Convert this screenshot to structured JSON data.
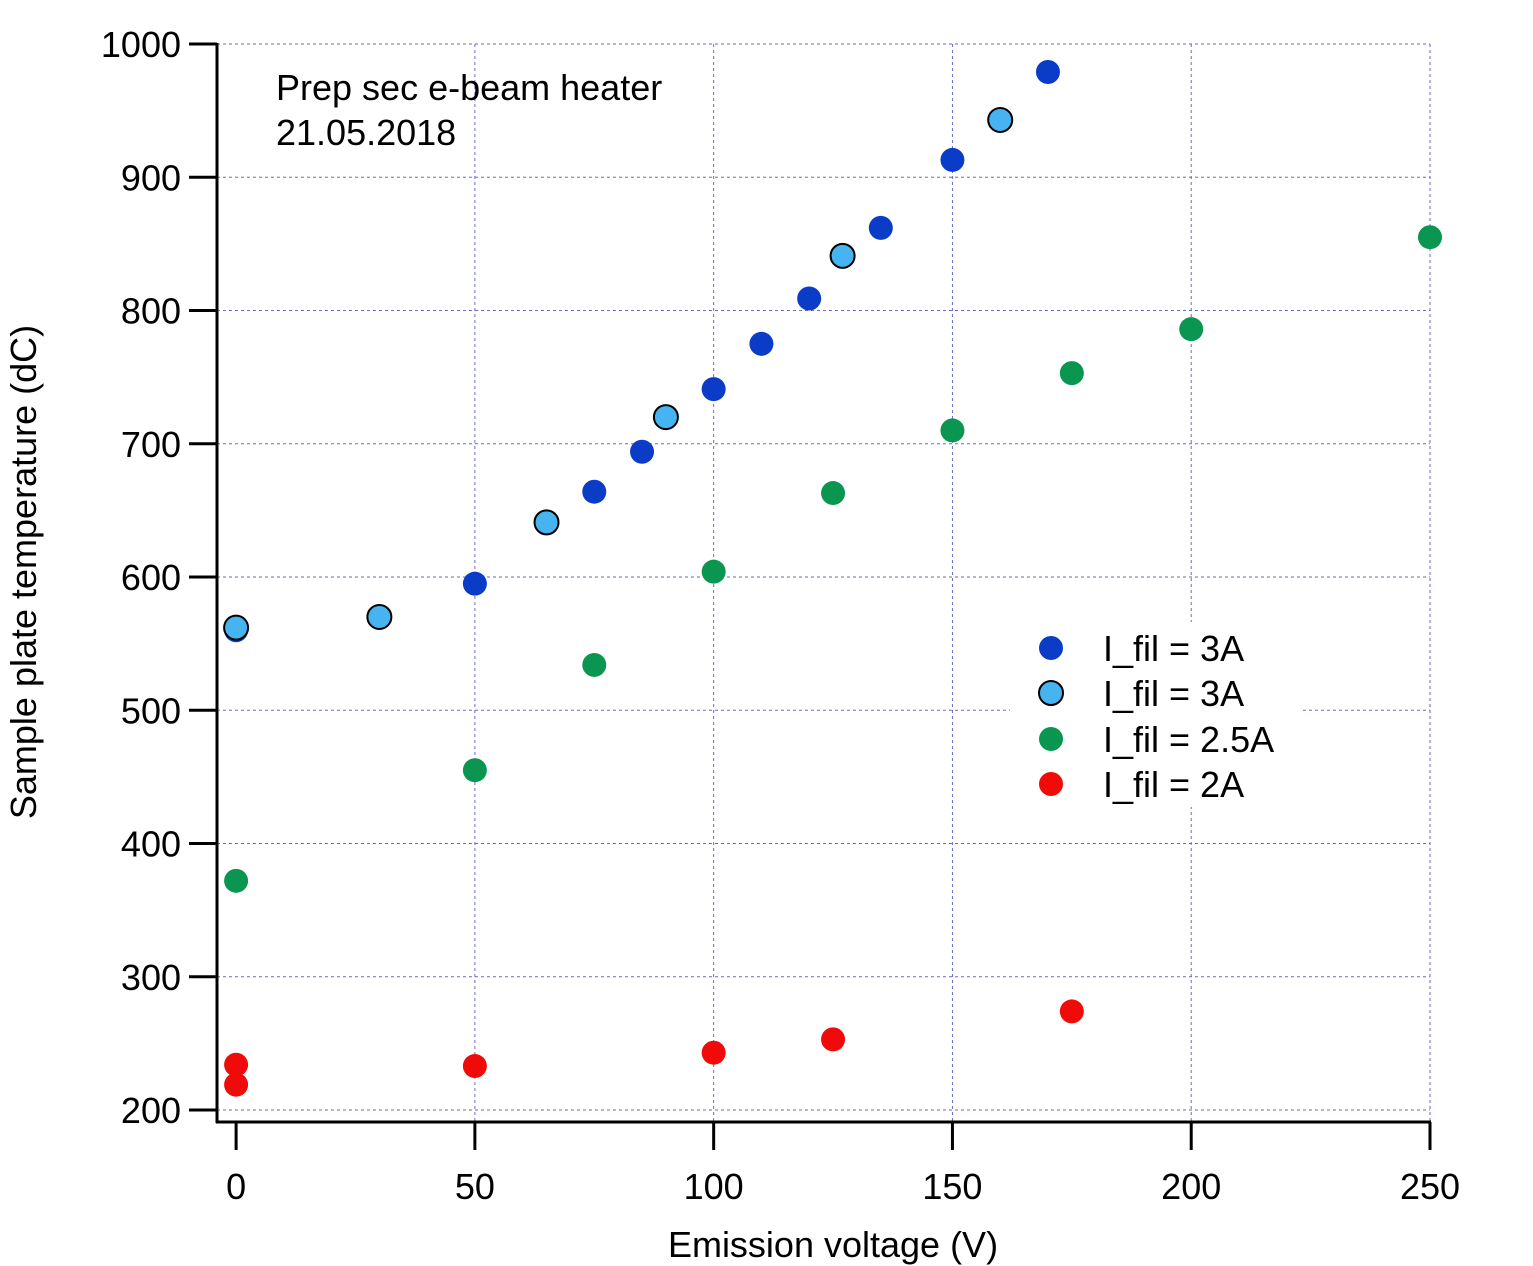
{
  "chart_data": {
    "type": "scatter",
    "title": "",
    "annotations": [
      "Prep sec e-beam heater",
      "21.05.2018"
    ],
    "xlabel": "Emission voltage (V)",
    "ylabel": "Sample plate temperature (dC)",
    "xlim": [
      -4,
      250
    ],
    "ylim": [
      191,
      1000
    ],
    "xticks": [
      0,
      50,
      100,
      150,
      200,
      250
    ],
    "yticks": [
      200,
      300,
      400,
      500,
      600,
      700,
      800,
      900,
      1000
    ],
    "grid": true,
    "grid_color": "#6a6ac8",
    "legend_position": "right-middle",
    "series": [
      {
        "name": "I_fil = 3A",
        "color": "#0a3cc8",
        "outline": "",
        "points": [
          {
            "x": 0,
            "y": 560
          },
          {
            "x": 50,
            "y": 595
          },
          {
            "x": 75,
            "y": 664
          },
          {
            "x": 85,
            "y": 694
          },
          {
            "x": 100,
            "y": 741
          },
          {
            "x": 110,
            "y": 775
          },
          {
            "x": 120,
            "y": 809
          },
          {
            "x": 135,
            "y": 862
          },
          {
            "x": 150,
            "y": 913
          },
          {
            "x": 170,
            "y": 979
          }
        ]
      },
      {
        "name": "I_fil = 3A",
        "color": "#46b4f0",
        "outline": "#000000",
        "points": [
          {
            "x": 0,
            "y": 562
          },
          {
            "x": 30,
            "y": 570
          },
          {
            "x": 65,
            "y": 641
          },
          {
            "x": 90,
            "y": 720
          },
          {
            "x": 127,
            "y": 841
          },
          {
            "x": 160,
            "y": 943
          }
        ]
      },
      {
        "name": "I_fil = 2.5A",
        "color": "#0a9650",
        "outline": "",
        "points": [
          {
            "x": 0,
            "y": 372
          },
          {
            "x": 50,
            "y": 455
          },
          {
            "x": 75,
            "y": 534
          },
          {
            "x": 100,
            "y": 604
          },
          {
            "x": 125,
            "y": 663
          },
          {
            "x": 150,
            "y": 710
          },
          {
            "x": 175,
            "y": 753
          },
          {
            "x": 200,
            "y": 786
          },
          {
            "x": 250,
            "y": 855
          }
        ]
      },
      {
        "name": "I_fil = 2A",
        "color": "#f00a0a",
        "outline": "",
        "points": [
          {
            "x": 0,
            "y": 234
          },
          {
            "x": 0,
            "y": 219
          },
          {
            "x": 50,
            "y": 233
          },
          {
            "x": 100,
            "y": 243
          },
          {
            "x": 125,
            "y": 253
          },
          {
            "x": 175,
            "y": 274
          }
        ]
      }
    ]
  }
}
